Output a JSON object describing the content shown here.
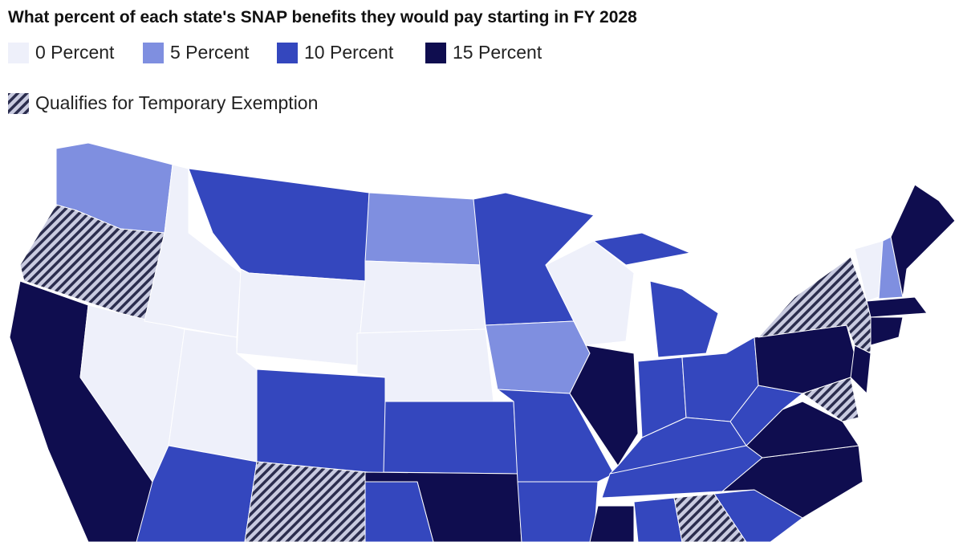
{
  "title": "What percent of each state's SNAP benefits they would pay starting in FY 2028",
  "legend": [
    {
      "value": 0,
      "label": "0 Percent",
      "color": "#eef0fa"
    },
    {
      "value": 5,
      "label": "5 Percent",
      "color": "#7f8fe0"
    },
    {
      "value": 10,
      "label": "10 Percent",
      "color": "#3447be"
    },
    {
      "value": 15,
      "label": "15 Percent",
      "color": "#0f0d4f"
    }
  ],
  "exemption_label": "Qualifies for Temporary Exemption",
  "states": [
    {
      "value": 5,
      "exempt": false
    },
    {
      "value": null,
      "exempt": true
    },
    {
      "value": 15,
      "exempt": false
    },
    {
      "value": 0,
      "exempt": false
    },
    {
      "value": 0,
      "exempt": false
    },
    {
      "value": 10,
      "exempt": false
    },
    {
      "value": 0,
      "exempt": false
    },
    {
      "value": 0,
      "exempt": false
    },
    {
      "value": 10,
      "exempt": false
    },
    {
      "value": 10,
      "exempt": false
    },
    {
      "value": null,
      "exempt": true
    },
    {
      "value": 5,
      "exempt": false
    },
    {
      "value": 0,
      "exempt": false
    },
    {
      "value": 0,
      "exempt": false
    },
    {
      "value": 10,
      "exempt": false
    },
    {
      "value": 15,
      "exempt": false
    },
    {
      "value": 10,
      "exempt": false
    },
    {
      "value": 10,
      "exempt": false
    },
    {
      "value": 5,
      "exempt": false
    },
    {
      "value": 10,
      "exempt": false
    },
    {
      "value": 10,
      "exempt": false
    },
    {
      "value": 0,
      "exempt": false
    },
    {
      "value": 15,
      "exempt": false
    },
    {
      "value": 10,
      "exempt": false
    },
    {
      "value": 10,
      "exempt": false
    },
    {
      "value": 10,
      "exempt": false
    },
    {
      "value": 10,
      "exempt": false
    },
    {
      "value": 10,
      "exempt": false
    },
    {
      "value": 10,
      "exempt": false
    },
    {
      "value": 15,
      "exempt": false
    },
    {
      "value": 10,
      "exempt": false
    },
    {
      "value": null,
      "exempt": true
    },
    {
      "value": 10,
      "exempt": false
    },
    {
      "value": 15,
      "exempt": false
    },
    {
      "value": 15,
      "exempt": false
    },
    {
      "value": 10,
      "exempt": false
    },
    {
      "value": 15,
      "exempt": false
    },
    {
      "value": null,
      "exempt": true
    },
    {
      "value": 0,
      "exempt": false
    },
    {
      "value": 5,
      "exempt": false
    },
    {
      "value": 15,
      "exempt": false
    },
    {
      "value": 15,
      "exempt": false
    },
    {
      "value": 15,
      "exempt": false
    },
    {
      "value": 15,
      "exempt": false
    },
    {
      "value": null,
      "exempt": true
    }
  ]
}
